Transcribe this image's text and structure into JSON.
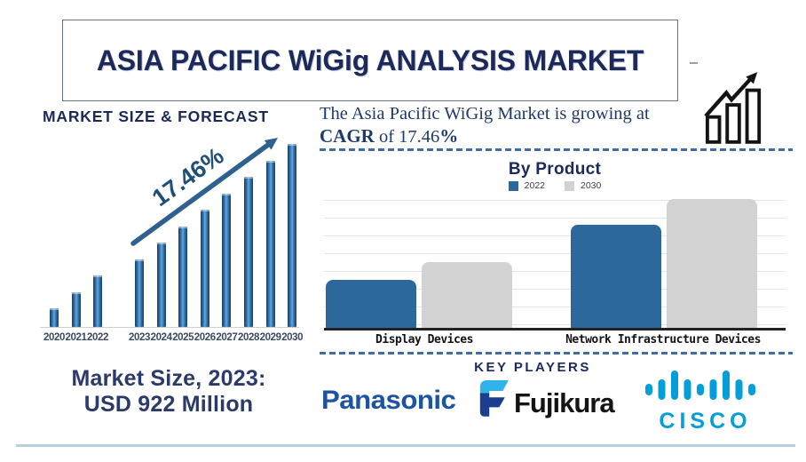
{
  "header": {
    "title": "ASIA PACIFIC WiGig ANALYSIS MARKET"
  },
  "left_panel": {
    "market_size": {
      "line1": "Market Size, 2023:",
      "line2": "USD 922 Million"
    }
  },
  "right_panel": {
    "growth_text": {
      "line1": "The  Asia Pacific WiGig Market is growing at",
      "bold_prefix": "CAGR",
      "middle": " of 17.46",
      "bold_suffix": "%"
    },
    "key_players": {
      "title": "KEY PLAYERS",
      "players": [
        {
          "name": "Panasonic",
          "brand_color": "#1c53a3"
        },
        {
          "name": "Fujikura",
          "brand_color": "#141414"
        },
        {
          "name": "CISCO",
          "brand_color": "#049fd9"
        }
      ]
    }
  },
  "icons": {
    "growth_chart_icon": "outlined ascending bars with zigzag rising arrow",
    "trend_arrow_icon": "straight rising arrow over forecast bars",
    "fujikura_flag_icon": "two-tone blue rounded F flag mark",
    "cisco_bridge_icon": "nine vertical rounded bars"
  },
  "colors": {
    "navy_text": "#1b2a5a",
    "serif_text": "#1e3a66",
    "forecast_bar_blue": "#2e75b6",
    "trend_arrow_blue": "#2e618f",
    "byproduct_blue": "#2d689c",
    "byproduct_gray": "#d2d2d2",
    "dashed_divider_blue": "#3f6ea6",
    "bottom_divider_blue": "#b9cfdb",
    "panasonic_blue": "#1c53a3",
    "cisco_blue": "#049fd9",
    "fujikura_cyan": "#2fb3e8",
    "fujikura_navy": "#1b3e8f"
  },
  "chart_data": [
    {
      "type": "bar",
      "title": "MARKET SIZE & FORECAST",
      "categories": [
        "2020",
        "2021",
        "2022",
        "2023",
        "2024",
        "2025",
        "2026",
        "2027",
        "2028",
        "2029",
        "2030"
      ],
      "values_pct_of_2030": [
        10,
        19,
        28,
        37,
        46,
        55,
        64,
        73,
        82,
        91,
        100
      ],
      "anchor_value": {
        "year": "2023",
        "label": "USD 922 Million"
      },
      "annotation": "17.46%",
      "bar_color": "#2e75b6",
      "y_axis_visible": false,
      "x_gap_after": "2022",
      "legend_position": "none"
    },
    {
      "type": "bar",
      "title": "By Product",
      "categories": [
        "Display Devices",
        "Network Infrastructure Devices"
      ],
      "series": [
        {
          "name": "2022",
          "color": "#2d689c",
          "values_pct_of_max": [
            37,
            80
          ]
        },
        {
          "name": "2030",
          "color": "#d2d2d2",
          "values_pct_of_max": [
            51,
            100
          ]
        }
      ],
      "legend_position": "top",
      "grid": "horizontal",
      "y_axis_visible": false
    }
  ]
}
